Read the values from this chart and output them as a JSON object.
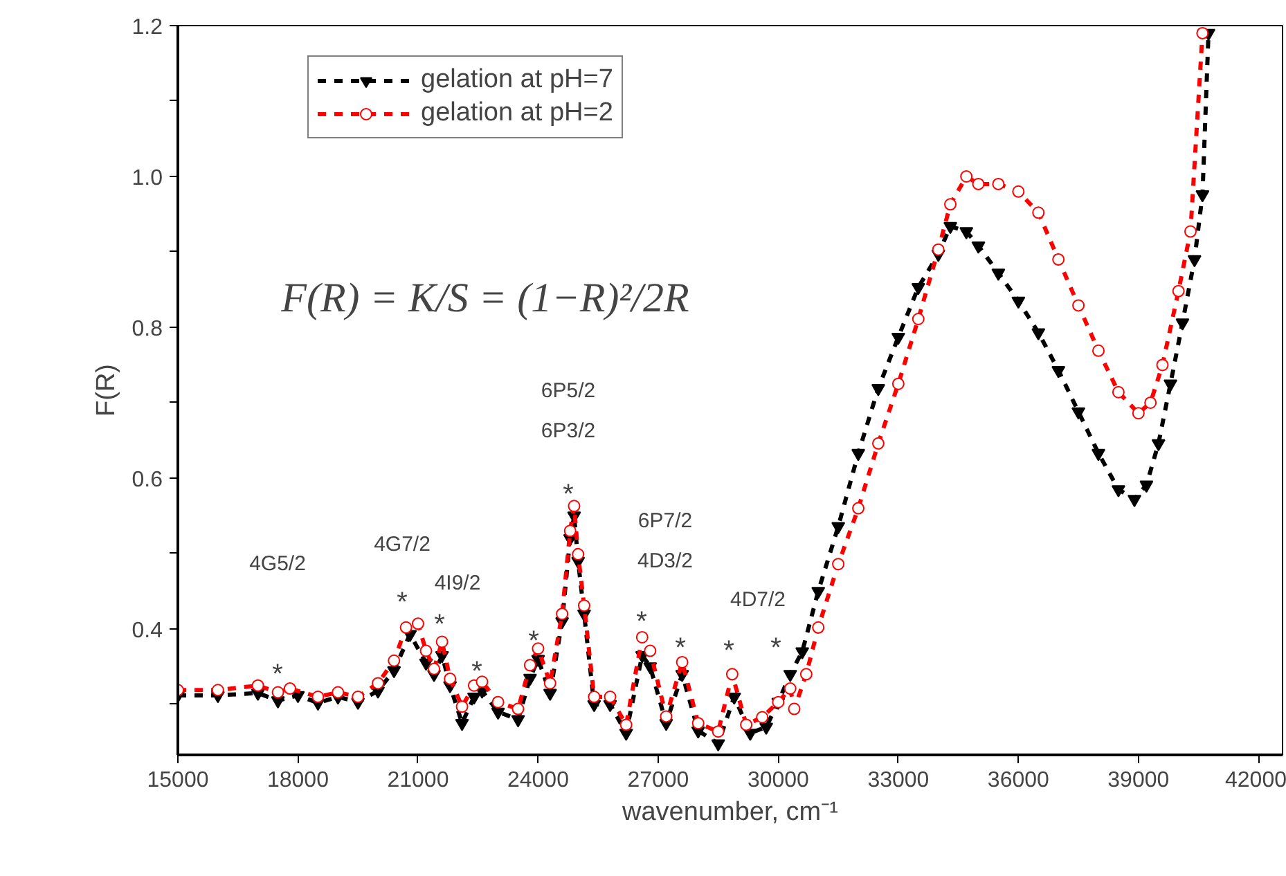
{
  "chart_data": {
    "type": "line",
    "xlabel": "wavenumber, cm⁻¹",
    "ylabel": "F(R)",
    "xlim": [
      15000,
      42600
    ],
    "ylim": [
      0.233,
      1.2
    ],
    "xticks": [
      15000,
      18000,
      21000,
      24000,
      27000,
      30000,
      33000,
      36000,
      39000,
      42000
    ],
    "yticks": [
      {
        "value": 0.3,
        "label": null
      },
      0.4,
      {
        "value": 0.5,
        "label": null
      },
      0.6,
      {
        "value": 0.7,
        "label": null
      },
      0.8,
      {
        "value": 0.9,
        "label": null
      },
      {
        "value": 1.0,
        "label": "1.0"
      },
      {
        "value": 1.1,
        "label": null
      },
      1.2
    ],
    "grid": false,
    "legend": "top left",
    "line_style": "dashed",
    "series": [
      {
        "name": "gelation at pH=7",
        "color": "#000000",
        "marker": "triangle",
        "x": [
          15000,
          16000,
          17000,
          17500,
          18000,
          18500,
          19000,
          19500,
          20000,
          20400,
          20800,
          21200,
          21400,
          21600,
          21800,
          22100,
          22400,
          22600,
          23000,
          23500,
          23800,
          24000,
          24300,
          24600,
          24800,
          24900,
          25000,
          25150,
          25400,
          25800,
          26200,
          26600,
          26800,
          27200,
          27600,
          28000,
          28500,
          28900,
          29300,
          29700,
          30000,
          30300,
          30600,
          31000,
          31500,
          32000,
          32500,
          33000,
          33500,
          34000,
          34300,
          34700,
          35000,
          35500,
          36000,
          36500,
          37000,
          37500,
          38000,
          38500,
          38900,
          39200,
          39500,
          39800,
          40100,
          40400,
          40600,
          40750
        ],
        "values": [
          0.312,
          0.312,
          0.315,
          0.305,
          0.312,
          0.302,
          0.31,
          0.303,
          0.318,
          0.345,
          0.393,
          0.355,
          0.34,
          0.365,
          0.325,
          0.275,
          0.31,
          0.318,
          0.29,
          0.28,
          0.335,
          0.36,
          0.315,
          0.41,
          0.52,
          0.55,
          0.49,
          0.42,
          0.3,
          0.3,
          0.262,
          0.365,
          0.35,
          0.275,
          0.34,
          0.265,
          0.248,
          0.31,
          0.262,
          0.27,
          0.303,
          0.34,
          0.37,
          0.45,
          0.536,
          0.633,
          0.719,
          0.787,
          0.853,
          0.897,
          0.934,
          0.927,
          0.908,
          0.872,
          0.835,
          0.793,
          0.743,
          0.688,
          0.633,
          0.585,
          0.572,
          0.591,
          0.646,
          0.725,
          0.806,
          0.89,
          0.976,
          1.19
        ]
      },
      {
        "name": "gelation at pH=2",
        "color": "#ff0000",
        "marker": "circle",
        "x": [
          15000,
          16000,
          17000,
          17500,
          17800,
          18500,
          19000,
          19500,
          20000,
          20400,
          20700,
          21000,
          21200,
          21400,
          21600,
          21800,
          22100,
          22400,
          22600,
          23000,
          23500,
          23800,
          24000,
          24300,
          24600,
          24800,
          24900,
          25000,
          25150,
          25400,
          25800,
          26200,
          26600,
          26800,
          27200,
          27600,
          28000,
          28500,
          28850,
          29200,
          29600,
          30000,
          30300,
          30400,
          30700,
          31000,
          31500,
          32000,
          32500,
          33000,
          33500,
          34000,
          34300,
          34700,
          35000,
          35500,
          36000,
          36500,
          37000,
          37500,
          38000,
          38500,
          39000,
          39300,
          39600,
          40000,
          40300,
          40600
        ],
        "values": [
          0.319,
          0.319,
          0.325,
          0.316,
          0.321,
          0.31,
          0.316,
          0.31,
          0.328,
          0.358,
          0.402,
          0.407,
          0.371,
          0.347,
          0.383,
          0.334,
          0.297,
          0.325,
          0.33,
          0.303,
          0.294,
          0.352,
          0.374,
          0.328,
          0.42,
          0.53,
          0.563,
          0.499,
          0.431,
          0.31,
          0.31,
          0.273,
          0.389,
          0.371,
          0.284,
          0.356,
          0.275,
          0.264,
          0.34,
          0.273,
          0.283,
          0.303,
          0.321,
          0.294,
          0.34,
          0.402,
          0.486,
          0.56,
          0.646,
          0.725,
          0.811,
          0.903,
          0.963,
          1.0,
          0.99,
          0.99,
          0.98,
          0.952,
          0.89,
          0.829,
          0.769,
          0.714,
          0.686,
          0.7,
          0.75,
          0.848,
          0.927,
          1.19
        ]
      }
    ],
    "annotations": [
      "F(R) = K/S = (1−R)²/2R",
      "4G5/2",
      "4G7/2",
      "4I9/2",
      "6P5/2",
      "6P3/2",
      "6P7/2",
      "4D3/2",
      "4D7/2",
      "*",
      "*",
      "*",
      "*",
      "*",
      "*",
      "*",
      "*",
      "*",
      "*"
    ]
  }
}
